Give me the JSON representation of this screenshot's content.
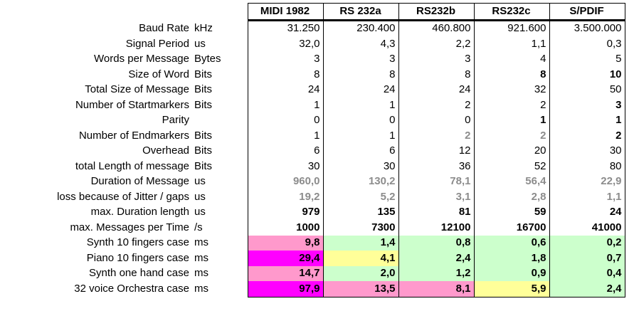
{
  "columns": [
    "MIDI 1982",
    "RS 232a",
    "RS232b",
    "RS232c",
    "S/PDIF"
  ],
  "rows": [
    {
      "label": "Baud Rate",
      "unit": "kHz",
      "values": [
        "31.250",
        "230.400",
        "460.800",
        "921.600",
        "3.500.000"
      ]
    },
    {
      "label": "Signal Period",
      "unit": "us",
      "values": [
        "32,0",
        "4,3",
        "2,2",
        "1,1",
        "0,3"
      ]
    },
    {
      "label": "Words per Message",
      "unit": "Bytes",
      "values": [
        "3",
        "3",
        "3",
        "4",
        "5"
      ]
    },
    {
      "label": "Size of Word",
      "unit": "Bits",
      "values": [
        "8",
        "8",
        "8",
        "8",
        "10"
      ]
    },
    {
      "label": "Total Size of Message",
      "unit": "Bits",
      "values": [
        "24",
        "24",
        "24",
        "32",
        "50"
      ]
    },
    {
      "label": "Number of Startmarkers",
      "unit": "Bits",
      "values": [
        "1",
        "1",
        "2",
        "2",
        "3"
      ]
    },
    {
      "label": "Parity",
      "unit": "",
      "values": [
        "0",
        "0",
        "0",
        "1",
        "1"
      ]
    },
    {
      "label": "Number of Endmarkers",
      "unit": "Bits",
      "values": [
        "1",
        "1",
        "2",
        "2",
        "2"
      ]
    },
    {
      "label": "Overhead",
      "unit": "Bits",
      "values": [
        "6",
        "6",
        "12",
        "20",
        "30"
      ]
    },
    {
      "label": "total Length of message",
      "unit": "Bits",
      "values": [
        "30",
        "30",
        "36",
        "52",
        "80"
      ]
    },
    {
      "label": "Duration of Message",
      "unit": "us",
      "values": [
        "960,0",
        "130,2",
        "78,1",
        "56,4",
        "22,9"
      ]
    },
    {
      "label": "loss because of Jitter / gaps",
      "unit": "us",
      "values": [
        "19,2",
        "5,2",
        "3,1",
        "2,8",
        "1,1"
      ]
    },
    {
      "label": "max. Duration length",
      "unit": "us",
      "values": [
        "979",
        "135",
        "81",
        "59",
        "24"
      ]
    },
    {
      "label": "max. Messages per Time",
      "unit": "/s",
      "values": [
        "1000",
        "7300",
        "12100",
        "16700",
        "41000"
      ]
    },
    {
      "label": "Synth 10 fingers case",
      "unit": "ms",
      "values": [
        "9,8",
        "1,4",
        "0,8",
        "0,6",
        "0,2"
      ]
    },
    {
      "label": "Piano 10 fingers case",
      "unit": "ms",
      "values": [
        "29,4",
        "4,1",
        "2,4",
        "1,8",
        "0,7"
      ]
    },
    {
      "label": "Synth one hand case",
      "unit": "ms",
      "values": [
        "14,7",
        "2,0",
        "1,2",
        "0,9",
        "0,4"
      ]
    },
    {
      "label": "32 voice Orchestra case",
      "unit": "ms",
      "values": [
        "97,9",
        "13,5",
        "8,1",
        "5,9",
        "2,4"
      ]
    }
  ],
  "cell_colors": {
    "magenta": "#ff00ff",
    "pink": "#ff99cc",
    "yellow": "#ffff99",
    "green": "#ccffcc"
  },
  "cell_fill_by_row": [
    [
      "pink",
      "green",
      "green",
      "green",
      "green"
    ],
    [
      "magenta",
      "yellow",
      "green",
      "green",
      "green"
    ],
    [
      "pink",
      "green",
      "green",
      "green",
      "green"
    ],
    [
      "magenta",
      "pink",
      "pink",
      "yellow",
      "green"
    ]
  ]
}
